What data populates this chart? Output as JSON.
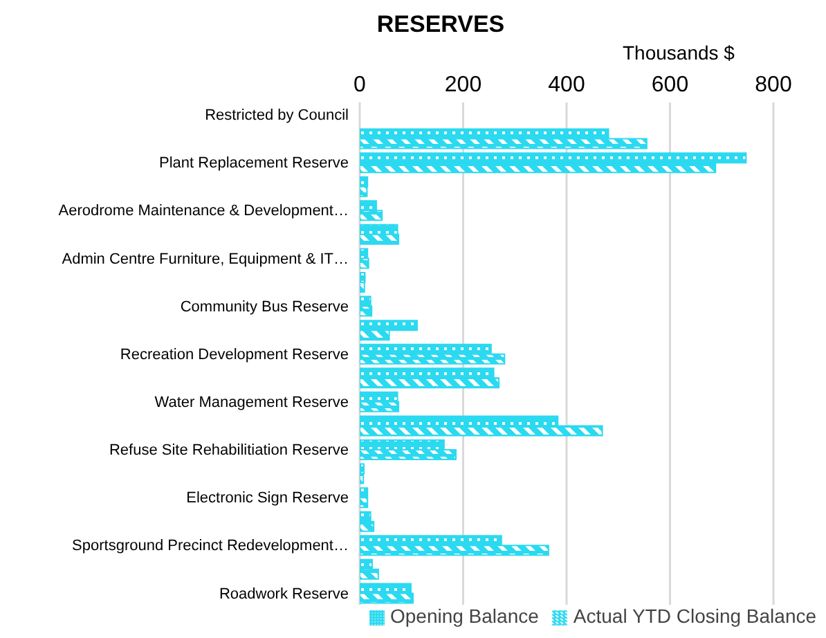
{
  "chart_data": {
    "type": "bar",
    "orientation": "horizontal",
    "title": "RESERVES",
    "xlabel": "Thousands $",
    "categories": [
      "Restricted by Council",
      null,
      "Plant Replacement Reserve",
      null,
      "Aerodrome Maintenance  & Development…",
      null,
      "Admin Centre Furniture, Equipment & IT…",
      null,
      "Community Bus Reserve",
      null,
      "Recreation Development Reserve",
      null,
      "Water Management Reserve",
      null,
      "Refuse Site Rehabilitiation Reserve",
      null,
      "Electronic Sign Reserve",
      null,
      "Sportsground Precinct Redevelopment…",
      null,
      "Roadwork Reserve"
    ],
    "series": [
      {
        "name": "Opening  Balance",
        "color": "#2bd9f0",
        "values": [
          null,
          481,
          747,
          15,
          32,
          73,
          15,
          10,
          21,
          111,
          254,
          259,
          73,
          383,
          163,
          8,
          15,
          21,
          274,
          24,
          99
        ]
      },
      {
        "name": "Actual YTD Closing Balance",
        "color": "#2bd9f0",
        "values": [
          null,
          555,
          688,
          14,
          43,
          75,
          17,
          9,
          23,
          57,
          280,
          269,
          75,
          469,
          186,
          7,
          15,
          27,
          365,
          36,
          103
        ]
      }
    ],
    "xlim": [
      0,
      800
    ],
    "xticks": [
      0,
      200,
      400,
      600,
      800
    ],
    "grid": "x",
    "legend": "bottom"
  }
}
